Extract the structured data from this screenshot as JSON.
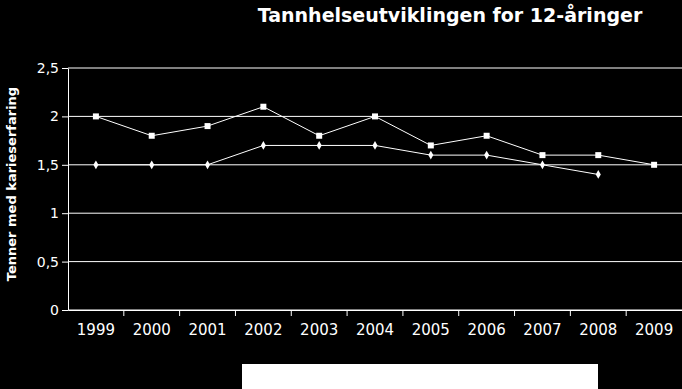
{
  "chart_data": {
    "type": "line",
    "title": "Tannhelseutviklingen for 12-åringer",
    "y_label": "Tenner med karieserfaring",
    "categories": [
      "1999",
      "2000",
      "2001",
      "2002",
      "2003",
      "2004",
      "2005",
      "2006",
      "2007",
      "2008",
      "2009"
    ],
    "series": [
      {
        "color": "#ffffff",
        "marker": "square",
        "values": [
          2.0,
          1.8,
          1.9,
          2.1,
          1.8,
          2.0,
          1.7,
          1.8,
          1.6,
          1.6,
          1.5
        ]
      },
      {
        "color": "#ffffff",
        "marker": "diamond",
        "values": [
          1.5,
          1.5,
          1.5,
          1.7,
          1.7,
          1.7,
          1.6,
          1.6,
          1.5,
          1.4,
          null
        ]
      }
    ],
    "ylim": [
      0,
      2.5
    ],
    "yticks": [
      0,
      {
        "value": 0.5,
        "label": "0,5"
      },
      1,
      {
        "value": 1.5,
        "label": "1,5"
      },
      2,
      {
        "value": 2.5,
        "label": "2,5"
      }
    ],
    "grid": true
  }
}
